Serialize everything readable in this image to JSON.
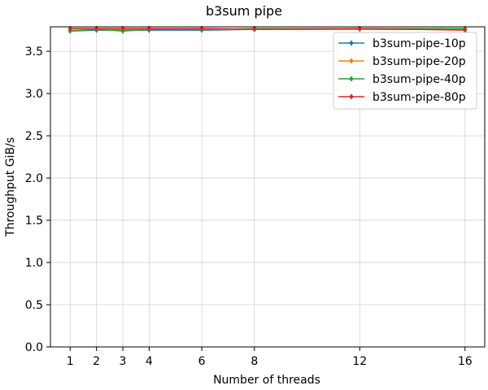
{
  "chart_data": {
    "type": "line",
    "title": "b3sum pipe",
    "xlabel": "Number of threads",
    "ylabel": "Throughput GiB/s",
    "x": [
      1,
      2,
      3,
      4,
      6,
      8,
      12,
      16
    ],
    "xticks": [
      "1",
      "2",
      "3",
      "4",
      "6",
      "8",
      "12",
      "16"
    ],
    "yticks": [
      "0.0",
      "0.5",
      "1.0",
      "1.5",
      "2.0",
      "2.5",
      "3.0",
      "3.5"
    ],
    "xlim": [
      0.25,
      16.75
    ],
    "ylim": [
      0,
      3.79
    ],
    "grid": true,
    "legend_position": "top-right",
    "series": [
      {
        "name": "b3sum-pipe-10p",
        "color": "#1f77b4",
        "values": [
          3.74,
          3.75,
          3.75,
          3.75,
          3.75,
          3.76,
          3.76,
          3.76
        ]
      },
      {
        "name": "b3sum-pipe-20p",
        "color": "#ff7f0e",
        "values": [
          3.76,
          3.77,
          3.76,
          3.77,
          3.76,
          3.76,
          3.76,
          3.76
        ]
      },
      {
        "name": "b3sum-pipe-40p",
        "color": "#2ca02c",
        "values": [
          3.74,
          3.76,
          3.74,
          3.76,
          3.76,
          3.77,
          3.77,
          3.77
        ]
      },
      {
        "name": "b3sum-pipe-80p",
        "color": "#d62728",
        "values": [
          3.77,
          3.77,
          3.77,
          3.77,
          3.77,
          3.76,
          3.77,
          3.75
        ]
      }
    ]
  }
}
